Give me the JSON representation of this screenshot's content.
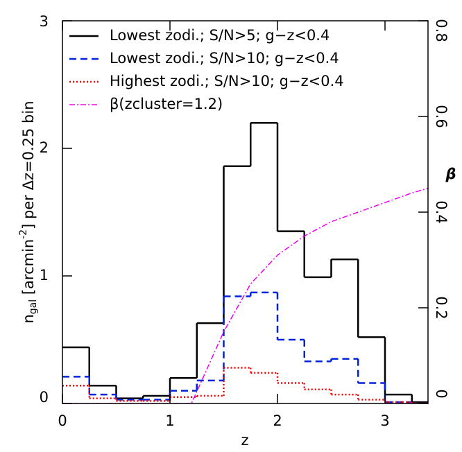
{
  "chart_data": {
    "type": "step-histogram",
    "xlabel": "z",
    "ylabel": [
      "n",
      "gal",
      " [arcmin",
      "-2",
      "] per Δz=0.25 bin"
    ],
    "y2label": "β",
    "xlim": [
      0,
      3.4
    ],
    "xticks": [
      0,
      1,
      2,
      3
    ],
    "ylim": [
      0,
      3
    ],
    "yticks": [
      0,
      1,
      2,
      3
    ],
    "y2lim": [
      0,
      0.8
    ],
    "y2ticks": [
      0,
      0.2,
      0.4,
      0.6,
      0.8
    ],
    "bins": [
      0,
      0.25,
      0.5,
      0.75,
      1,
      1.25,
      1.5,
      1.75,
      2,
      2.25,
      2.5,
      2.75,
      3,
      3.25,
      3.5
    ],
    "series": [
      {
        "name": "Lowest zodi.; S/N>5; g−z<0.4",
        "color": "#000000",
        "dash": "none",
        "values": [
          0.44,
          0.14,
          0.04,
          0.06,
          0.2,
          0.63,
          1.86,
          2.2,
          1.35,
          0.99,
          1.13,
          0.52,
          0.07,
          0.01
        ]
      },
      {
        "name": "Lowest zodi.; S/N>10; g−z<0.4",
        "color": "#0022dd",
        "dash": "10,6",
        "values": [
          0.21,
          0.07,
          0.03,
          0.03,
          0.1,
          0.18,
          0.84,
          0.87,
          0.5,
          0.33,
          0.35,
          0.16,
          0.01,
          0
        ]
      },
      {
        "name": "Highest zodi.; S/N>10; g−z<0.4",
        "color": "#ff0000",
        "dash": "2,3",
        "values": [
          0.14,
          0.04,
          0.02,
          0.02,
          0.05,
          0.06,
          0.28,
          0.24,
          0.16,
          0.11,
          0.07,
          0.03,
          0.01,
          0
        ]
      },
      {
        "name": "β(zcluster=1.2)",
        "color": "#ee00ee",
        "dash": "8,3,2,3",
        "axis": "y2",
        "x": [
          0,
          1.2,
          1.3,
          1.4,
          1.5,
          1.75,
          2,
          2.25,
          2.5,
          2.75,
          3,
          3.25,
          3.4
        ],
        "values": [
          0,
          0,
          0.05,
          0.1,
          0.15,
          0.25,
          0.31,
          0.35,
          0.38,
          0.4,
          0.42,
          0.44,
          0.45
        ]
      }
    ]
  }
}
